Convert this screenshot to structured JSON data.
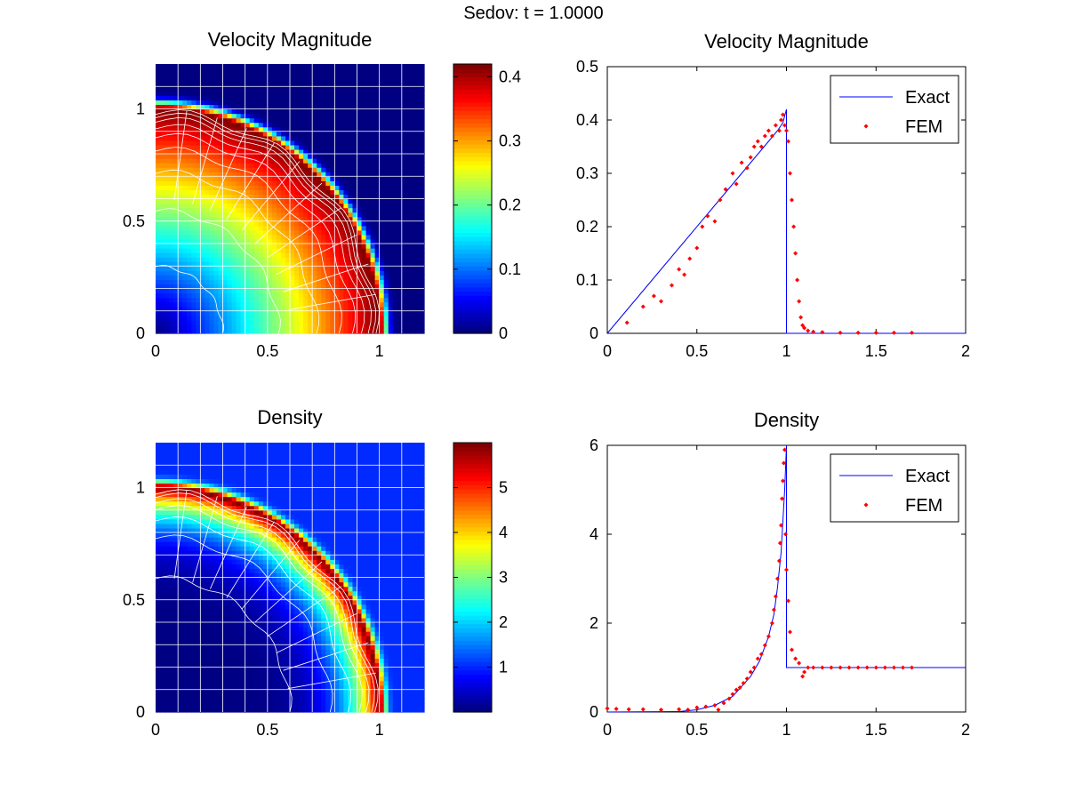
{
  "figure": {
    "suptitle": "Sedov: t = 1.0000"
  },
  "colors": {
    "exact_line": "#0000ff",
    "fem_points": "#ff0000",
    "mesh_lines": "#ffffff",
    "background_field": "#00008f",
    "colormap": "jet"
  },
  "chart_data": [
    {
      "id": "velocity-map",
      "type": "heatmap",
      "title": "Velocity Magnitude",
      "xlim": [
        0,
        1.2
      ],
      "ylim": [
        0,
        1.2
      ],
      "xticks": [
        "0",
        "0.5",
        "1"
      ],
      "yticks": [
        "0",
        "0.5",
        "1"
      ],
      "colorbar": {
        "colormap": "jet",
        "range": [
          0,
          0.42
        ],
        "ticks": [
          "0",
          "0.1",
          "0.2",
          "0.3",
          "0.4"
        ]
      },
      "field": {
        "description_free": true,
        "shock_radius": 1.0,
        "peak_value": 0.42,
        "center_value": 0.0,
        "outside_value": 0.0
      }
    },
    {
      "id": "velocity-profile",
      "type": "scatter",
      "title": "Velocity Magnitude",
      "xlim": [
        0,
        2
      ],
      "ylim": [
        0,
        0.5
      ],
      "xticks": [
        "0",
        "0.5",
        "1",
        "1.5",
        "2"
      ],
      "yticks": [
        "0",
        "0.1",
        "0.2",
        "0.3",
        "0.4",
        "0.5"
      ],
      "legend": {
        "placement": "top-right",
        "entries": [
          "Exact",
          "FEM"
        ]
      },
      "series": [
        {
          "name": "Exact",
          "kind": "line",
          "x": [
            0,
            0.2,
            0.4,
            0.6,
            0.8,
            0.9,
            0.95,
            0.98,
            1.0,
            1.0,
            2.0
          ],
          "y": [
            0,
            0.08,
            0.16,
            0.24,
            0.32,
            0.36,
            0.38,
            0.395,
            0.42,
            0,
            0
          ]
        },
        {
          "name": "FEM",
          "kind": "markers",
          "x": [
            0.11,
            0.2,
            0.26,
            0.3,
            0.36,
            0.4,
            0.43,
            0.46,
            0.5,
            0.53,
            0.56,
            0.6,
            0.63,
            0.66,
            0.7,
            0.72,
            0.75,
            0.78,
            0.8,
            0.82,
            0.84,
            0.86,
            0.88,
            0.9,
            0.92,
            0.94,
            0.96,
            0.97,
            0.98,
            0.99,
            1.0,
            1.01,
            1.02,
            1.03,
            1.04,
            1.05,
            1.06,
            1.07,
            1.08,
            1.09,
            1.1,
            1.12,
            1.15,
            1.2,
            1.3,
            1.4,
            1.5,
            1.6,
            1.7
          ],
          "y": [
            0.02,
            0.05,
            0.07,
            0.06,
            0.09,
            0.12,
            0.11,
            0.14,
            0.16,
            0.2,
            0.22,
            0.21,
            0.25,
            0.27,
            0.3,
            0.28,
            0.32,
            0.31,
            0.33,
            0.35,
            0.36,
            0.35,
            0.37,
            0.38,
            0.37,
            0.39,
            0.38,
            0.4,
            0.41,
            0.39,
            0.38,
            0.36,
            0.3,
            0.25,
            0.2,
            0.15,
            0.1,
            0.06,
            0.03,
            0.015,
            0.01,
            0.005,
            0.003,
            0.002,
            0.001,
            0.001,
            0.001,
            0.001,
            0.001
          ]
        }
      ]
    },
    {
      "id": "density-map",
      "type": "heatmap",
      "title": "Density",
      "xlim": [
        0,
        1.2
      ],
      "ylim": [
        0,
        1.2
      ],
      "xticks": [
        "0",
        "0.5",
        "1"
      ],
      "yticks": [
        "0",
        "0.5",
        "1"
      ],
      "colorbar": {
        "colormap": "jet",
        "range": [
          0,
          6
        ],
        "ticks": [
          "1",
          "2",
          "3",
          "4",
          "5"
        ]
      },
      "field": {
        "shock_radius": 1.0,
        "peak_value": 6.0,
        "center_value": 0.0,
        "outside_value": 1.0
      }
    },
    {
      "id": "density-profile",
      "type": "scatter",
      "title": "Density",
      "xlim": [
        0,
        2
      ],
      "ylim": [
        0,
        6
      ],
      "xticks": [
        "0",
        "0.5",
        "1",
        "1.5",
        "2"
      ],
      "yticks": [
        "0",
        "2",
        "4",
        "6"
      ],
      "legend": {
        "placement": "top-right",
        "entries": [
          "Exact",
          "FEM"
        ]
      },
      "series": [
        {
          "name": "Exact",
          "kind": "line",
          "x": [
            0,
            0.4,
            0.5,
            0.6,
            0.7,
            0.8,
            0.85,
            0.9,
            0.93,
            0.95,
            0.97,
            0.98,
            0.99,
            1.0,
            1.0,
            2.0
          ],
          "y": [
            0,
            0.01,
            0.05,
            0.15,
            0.35,
            0.8,
            1.15,
            1.7,
            2.2,
            2.8,
            3.6,
            4.3,
            5.0,
            6.0,
            1.0,
            1.0
          ]
        },
        {
          "name": "FEM",
          "kind": "markers",
          "x": [
            0,
            0.05,
            0.12,
            0.2,
            0.3,
            0.4,
            0.45,
            0.5,
            0.55,
            0.6,
            0.62,
            0.65,
            0.68,
            0.7,
            0.72,
            0.74,
            0.76,
            0.78,
            0.8,
            0.82,
            0.84,
            0.86,
            0.88,
            0.9,
            0.92,
            0.93,
            0.94,
            0.95,
            0.96,
            0.965,
            0.97,
            0.975,
            0.98,
            0.985,
            0.99,
            0.995,
            1.0,
            1.01,
            1.02,
            1.03,
            1.05,
            1.07,
            1.09,
            1.1,
            1.12,
            1.15,
            1.2,
            1.25,
            1.3,
            1.35,
            1.4,
            1.45,
            1.5,
            1.55,
            1.6,
            1.65,
            1.7
          ],
          "y": [
            0.08,
            0.07,
            0.06,
            0.06,
            0.05,
            0.06,
            0.05,
            0.1,
            0.12,
            0.15,
            0.05,
            0.2,
            0.3,
            0.4,
            0.5,
            0.55,
            0.65,
            0.75,
            0.9,
            1.0,
            1.2,
            1.3,
            1.5,
            1.7,
            2.0,
            2.3,
            2.6,
            3.0,
            3.4,
            3.8,
            4.2,
            4.8,
            5.2,
            5.6,
            5.9,
            4.0,
            3.2,
            2.5,
            1.8,
            1.4,
            1.2,
            1.1,
            0.8,
            0.9,
            1.0,
            1.0,
            1.0,
            1.0,
            1.0,
            1.0,
            1.0,
            1.0,
            1.0,
            1.0,
            1.0,
            1.0,
            1.0
          ]
        }
      ]
    }
  ]
}
